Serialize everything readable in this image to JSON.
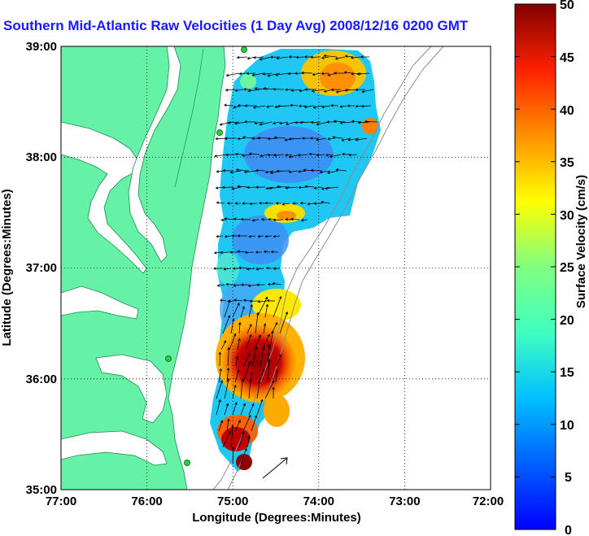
{
  "title": "Southern Mid-Atlantic Raw Velocities (1 Day Avg) 2008/12/16 0200 GMT",
  "xlabel": "Longitude (Degrees:Minutes)",
  "ylabel": "Latitude (Degrees:Minutes)",
  "x_ticks": [
    "77:00",
    "76:00",
    "75:00",
    "74:00",
    "73:00",
    "72:00"
  ],
  "y_ticks": [
    "39:00",
    "38:00",
    "37:00",
    "36:00",
    "35:00"
  ],
  "x_range": [
    -77,
    -72
  ],
  "y_range": [
    35,
    39
  ],
  "grid": "dotted",
  "colorbar": {
    "label": "Surface Velocity (cm/s)",
    "ticks": [
      "50",
      "45",
      "40",
      "35",
      "30",
      "25",
      "20",
      "15",
      "10",
      "5",
      "0"
    ],
    "range": [
      0,
      50
    ],
    "colormap": "jet"
  },
  "land_color": "#66f2a6",
  "coast_color": "#33cc77",
  "water_color": "#ffffff"
}
